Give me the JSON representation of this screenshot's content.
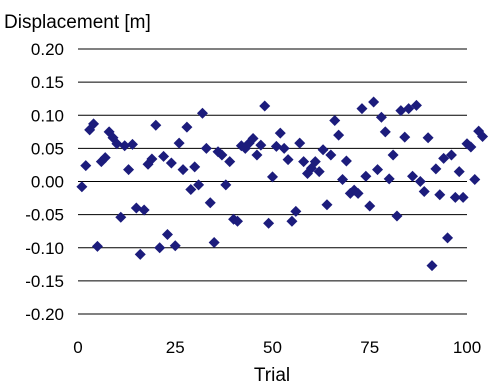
{
  "chart_data": {
    "type": "scatter",
    "title": "",
    "ylabel": "Displacement [m]",
    "xlabel": "Trial",
    "xlim": [
      0,
      100
    ],
    "ylim": [
      -0.2,
      0.2
    ],
    "x_ticks": [
      0,
      25,
      50,
      75,
      100
    ],
    "y_ticks": [
      -0.2,
      -0.15,
      -0.1,
      -0.05,
      0.0,
      0.05,
      0.1,
      0.15,
      0.2
    ],
    "x_tick_labels": [
      "0",
      "25",
      "50",
      "75",
      "100"
    ],
    "y_tick_labels": [
      "-0.20",
      "-0.15",
      "-0.10",
      "-0.05",
      "0.00",
      "0.05",
      "0.10",
      "0.15",
      "0.20"
    ],
    "grid": "horizontal",
    "marker": "diamond",
    "color": "#1c1c7c",
    "points": [
      [
        1,
        -0.008
      ],
      [
        2,
        0.024
      ],
      [
        3,
        0.078
      ],
      [
        4,
        0.087
      ],
      [
        5,
        -0.098
      ],
      [
        6,
        0.03
      ],
      [
        7,
        0.036
      ],
      [
        8,
        0.075
      ],
      [
        9,
        0.066
      ],
      [
        10,
        0.057
      ],
      [
        11,
        -0.054
      ],
      [
        12,
        0.054
      ],
      [
        13,
        0.018
      ],
      [
        14,
        0.056
      ],
      [
        15,
        -0.04
      ],
      [
        16,
        -0.11
      ],
      [
        17,
        -0.043
      ],
      [
        18,
        0.026
      ],
      [
        19,
        0.034
      ],
      [
        20,
        0.085
      ],
      [
        21,
        -0.1
      ],
      [
        22,
        0.038
      ],
      [
        23,
        -0.08
      ],
      [
        24,
        0.028
      ],
      [
        25,
        -0.097
      ],
      [
        26,
        0.058
      ],
      [
        27,
        0.018
      ],
      [
        28,
        0.082
      ],
      [
        29,
        -0.012
      ],
      [
        30,
        0.022
      ],
      [
        31,
        -0.005
      ],
      [
        32,
        0.103
      ],
      [
        33,
        0.05
      ],
      [
        34,
        -0.032
      ],
      [
        35,
        -0.092
      ],
      [
        36,
        0.045
      ],
      [
        37,
        0.04
      ],
      [
        38,
        -0.005
      ],
      [
        39,
        0.03
      ],
      [
        40,
        -0.057
      ],
      [
        41,
        -0.06
      ],
      [
        42,
        0.054
      ],
      [
        43,
        0.05
      ],
      [
        44,
        0.058
      ],
      [
        45,
        0.065
      ],
      [
        46,
        0.04
      ],
      [
        47,
        0.055
      ],
      [
        48,
        0.114
      ],
      [
        49,
        -0.063
      ],
      [
        50,
        0.007
      ],
      [
        51,
        0.053
      ],
      [
        52,
        0.073
      ],
      [
        53,
        0.05
      ],
      [
        54,
        0.033
      ],
      [
        55,
        -0.06
      ],
      [
        56,
        -0.045
      ],
      [
        57,
        0.058
      ],
      [
        58,
        0.03
      ],
      [
        59,
        0.012
      ],
      [
        60,
        0.02
      ],
      [
        61,
        0.03
      ],
      [
        62,
        0.015
      ],
      [
        63,
        0.048
      ],
      [
        64,
        -0.035
      ],
      [
        65,
        0.04
      ],
      [
        66,
        0.092
      ],
      [
        67,
        0.07
      ],
      [
        68,
        0.003
      ],
      [
        69,
        0.031
      ],
      [
        70,
        -0.018
      ],
      [
        71,
        -0.013
      ],
      [
        72,
        -0.018
      ],
      [
        73,
        0.11
      ],
      [
        74,
        0.008
      ],
      [
        75,
        -0.037
      ],
      [
        76,
        0.12
      ],
      [
        77,
        0.018
      ],
      [
        78,
        0.097
      ],
      [
        79,
        0.075
      ],
      [
        80,
        0.004
      ],
      [
        81,
        0.04
      ],
      [
        82,
        -0.052
      ],
      [
        83,
        0.107
      ],
      [
        84,
        0.067
      ],
      [
        85,
        0.11
      ],
      [
        86,
        0.008
      ],
      [
        87,
        0.115
      ],
      [
        88,
        0.0
      ],
      [
        89,
        -0.015
      ],
      [
        90,
        0.066
      ],
      [
        91,
        -0.127
      ],
      [
        92,
        0.019
      ],
      [
        93,
        -0.02
      ],
      [
        94,
        0.035
      ],
      [
        95,
        -0.085
      ],
      [
        96,
        0.04
      ],
      [
        97,
        -0.024
      ],
      [
        98,
        0.015
      ],
      [
        99,
        -0.024
      ],
      [
        100,
        0.057
      ],
      [
        101,
        0.052
      ],
      [
        102,
        0.003
      ],
      [
        103,
        0.076
      ],
      [
        104,
        0.068
      ]
    ]
  }
}
